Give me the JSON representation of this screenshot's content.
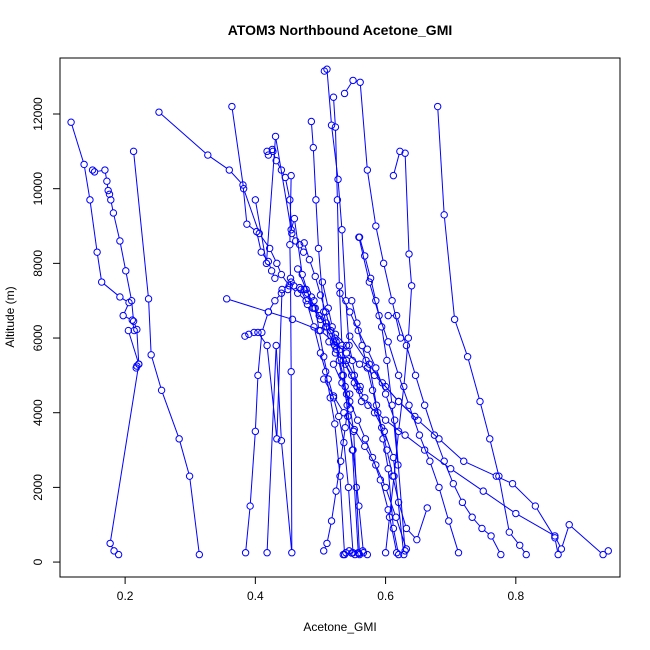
{
  "chart_data": {
    "type": "line",
    "title": "ATOM3 Northbound Acetone_GMI",
    "xlabel": "Acetone_GMI",
    "ylabel": "Altitude (m)",
    "xlim": [
      0.1,
      0.96
    ],
    "ylim": [
      -400,
      13500
    ],
    "xticks": [
      "0.2",
      "0.4",
      "0.6",
      "0.8"
    ],
    "xtick_values": [
      0.2,
      0.4,
      0.6,
      0.8
    ],
    "yticks": [
      "0",
      "2000",
      "4000",
      "6000",
      "8000",
      "10000",
      "12000"
    ],
    "ytick_values": [
      0,
      2000,
      4000,
      6000,
      8000,
      10000,
      12000
    ],
    "grid": false,
    "legend": "none",
    "line_color": "#0000ff",
    "marker": "open-circle",
    "series": [
      {
        "x": [
          0.117,
          0.137,
          0.146,
          0.157,
          0.164,
          0.192,
          0.206,
          0.197,
          0.211,
          0.214,
          0.205,
          0.221,
          0.218,
          0.217
        ],
        "y": [
          11780,
          10650,
          9700,
          8300,
          7500,
          7100,
          6950,
          6600,
          6480,
          6200,
          6200,
          5300,
          5250,
          5200
        ]
      },
      {
        "x": [
          0.15,
          0.153,
          0.169,
          0.172,
          0.174,
          0.176,
          0.178,
          0.182,
          0.192,
          0.201,
          0.21,
          0.213,
          0.218,
          0.221,
          0.177,
          0.183,
          0.19
        ],
        "y": [
          10500,
          10450,
          10500,
          10200,
          9950,
          9850,
          9700,
          9350,
          8600,
          7800,
          7000,
          6450,
          6230,
          5300,
          500,
          300,
          200
        ]
      },
      {
        "x": [
          0.213,
          0.236,
          0.24,
          0.256,
          0.283,
          0.299,
          0.314
        ],
        "y": [
          11000,
          7050,
          5550,
          4600,
          3300,
          2300,
          200
        ]
      },
      {
        "x": [
          0.252,
          0.327,
          0.36,
          0.381,
          0.387,
          0.402,
          0.409,
          0.42,
          0.425,
          0.43
        ],
        "y": [
          12050,
          10900,
          10500,
          10100,
          9050,
          8850,
          8300,
          8050,
          7800,
          7600
        ]
      },
      {
        "x": [
          0.356,
          0.42,
          0.457,
          0.5,
          0.52,
          0.54,
          0.56,
          0.583,
          0.6,
          0.62,
          0.645
        ],
        "y": [
          7050,
          6700,
          6500,
          6200,
          5900,
          5600,
          5300,
          5000,
          4700,
          4300,
          3900
        ]
      },
      {
        "x": [
          0.364,
          0.382,
          0.406,
          0.422,
          0.433,
          0.44,
          0.452,
          0.465,
          0.478,
          0.49,
          0.498,
          0.509,
          0.523,
          0.54
        ],
        "y": [
          12200,
          10000,
          8800,
          8400,
          8000,
          7700,
          7400,
          7200,
          7000,
          6800,
          6600,
          6400,
          6100,
          5800
        ]
      },
      {
        "x": [
          0.4,
          0.417,
          0.431,
          0.455,
          0.46,
          0.472,
          0.488,
          0.5,
          0.51,
          0.522,
          0.531,
          0.54,
          0.552,
          0.561
        ],
        "y": [
          9700,
          8000,
          11400,
          8900,
          9200,
          7700,
          6800,
          6500,
          6300,
          6000,
          5700,
          5400,
          5000,
          4700
        ]
      },
      {
        "x": [
          0.418,
          0.42,
          0.426,
          0.427,
          0.432,
          0.44,
          0.446,
          0.453,
          0.456,
          0.462,
          0.468,
          0.474
        ],
        "y": [
          11000,
          10900,
          11050,
          11000,
          10750,
          10500,
          10300,
          9700,
          8800,
          8600,
          8500,
          8300
        ]
      },
      {
        "x": [
          0.384,
          0.39,
          0.398,
          0.404,
          0.418,
          0.433,
          0.441,
          0.455,
          0.459,
          0.468,
          0.475,
          0.48,
          0.486
        ],
        "y": [
          6050,
          6100,
          6150,
          6150,
          5800,
          3300,
          7300,
          7500,
          7400,
          7350,
          7300,
          7200,
          7100
        ]
      },
      {
        "x": [
          0.455,
          0.453,
          0.454,
          0.455,
          0.456,
          0.44,
          0.432,
          0.418
        ],
        "y": [
          10350,
          8500,
          7600,
          5100,
          250,
          3250,
          5800,
          250
        ]
      },
      {
        "x": [
          0.385,
          0.392,
          0.4,
          0.404,
          0.41,
          0.42,
          0.43,
          0.44,
          0.45
        ],
        "y": [
          250,
          1500,
          3500,
          5000,
          6150,
          6700,
          7000,
          7200,
          7300
        ]
      },
      {
        "x": [
          0.486,
          0.489,
          0.493,
          0.497,
          0.505,
          0.513,
          0.523,
          0.535,
          0.548,
          0.56
        ],
        "y": [
          11800,
          11100,
          9700,
          8400,
          6700,
          5900,
          5600,
          5400,
          5000,
          4600
        ]
      },
      {
        "x": [
          0.506,
          0.51,
          0.517,
          0.527,
          0.533,
          0.539,
          0.544,
          0.549,
          0.556,
          0.563
        ],
        "y": [
          13150,
          13200,
          11700,
          10250,
          8900,
          7000,
          5800,
          5400,
          4700,
          4300
        ]
      },
      {
        "x": [
          0.52,
          0.523,
          0.526,
          0.529,
          0.533,
          0.538,
          0.542,
          0.55,
          0.559,
          0.566
        ],
        "y": [
          12450,
          11650,
          9700,
          7400,
          5800,
          4700,
          3900,
          3000,
          1500,
          250
        ]
      },
      {
        "x": [
          0.537,
          0.55,
          0.561,
          0.572,
          0.585,
          0.597,
          0.61,
          0.623
        ],
        "y": [
          12550,
          12900,
          12850,
          10500,
          9000,
          8000,
          7000,
          6000
        ]
      },
      {
        "x": [
          0.559,
          0.575,
          0.59,
          0.604,
          0.62,
          0.636,
          0.652,
          0.668,
          0.682,
          0.697,
          0.712
        ],
        "y": [
          8700,
          7500,
          6600,
          5900,
          5000,
          4200,
          3400,
          2700,
          2000,
          1100,
          250
        ]
      },
      {
        "x": [
          0.612,
          0.622,
          0.63,
          0.636,
          0.64,
          0.635,
          0.628,
          0.62,
          0.613,
          0.606,
          0.6
        ],
        "y": [
          10350,
          11000,
          10950,
          8250,
          7400,
          6000,
          4700,
          3500,
          2300,
          1200,
          250
        ]
      },
      {
        "x": [
          0.68,
          0.69,
          0.706,
          0.726,
          0.745,
          0.76,
          0.774,
          0.79,
          0.806,
          0.816
        ],
        "y": [
          12200,
          9300,
          6500,
          5500,
          4300,
          3300,
          2300,
          800,
          450,
          200
        ]
      },
      {
        "x": [
          0.604,
          0.617,
          0.632,
          0.646,
          0.66,
          0.675,
          0.69,
          0.704,
          0.718,
          0.733,
          0.748,
          0.762,
          0.777
        ],
        "y": [
          6600,
          6600,
          5800,
          5000,
          4200,
          3400,
          2700,
          2100,
          1600,
          1200,
          900,
          700,
          200
        ]
      },
      {
        "x": [
          0.545,
          0.57,
          0.595,
          0.62,
          0.65,
          0.682,
          0.72,
          0.77,
          0.795,
          0.83,
          0.86,
          0.865
        ],
        "y": [
          6050,
          5400,
          4800,
          4300,
          3800,
          3300,
          2700,
          2300,
          2100,
          1500,
          650,
          200
        ]
      },
      {
        "x": [
          0.573,
          0.6,
          0.63,
          0.66,
          0.7,
          0.75,
          0.8,
          0.86,
          0.87,
          0.882,
          0.934,
          0.942
        ],
        "y": [
          4200,
          3800,
          3400,
          3000,
          2500,
          1900,
          1300,
          700,
          350,
          1000,
          200,
          300
        ]
      },
      {
        "x": [
          0.503,
          0.512,
          0.518,
          0.524,
          0.529,
          0.535,
          0.54,
          0.546,
          0.551,
          0.555,
          0.56
        ],
        "y": [
          7500,
          6800,
          6300,
          5900,
          5400,
          5000,
          4500,
          4100,
          3500,
          2000,
          200
        ]
      },
      {
        "x": [
          0.49,
          0.498,
          0.505,
          0.512,
          0.52,
          0.528,
          0.536,
          0.543,
          0.55
        ],
        "y": [
          7000,
          6200,
          5500,
          4900,
          4400,
          3900,
          3200,
          2000,
          250
        ]
      },
      {
        "x": [
          0.47,
          0.48,
          0.49,
          0.5,
          0.508,
          0.515,
          0.522,
          0.53,
          0.537
        ],
        "y": [
          7300,
          6900,
          6300,
          5600,
          5100,
          4400,
          3700,
          2300,
          200
        ]
      },
      {
        "x": [
          0.465,
          0.478,
          0.492,
          0.508,
          0.522,
          0.538,
          0.552,
          0.568,
          0.583,
          0.598,
          0.612,
          0.628
        ],
        "y": [
          7850,
          7300,
          6800,
          6300,
          5800,
          5300,
          4800,
          4400,
          4000,
          3500,
          2800,
          200
        ]
      },
      {
        "x": [
          0.53,
          0.545,
          0.558,
          0.572,
          0.585,
          0.6,
          0.614,
          0.63
        ],
        "y": [
          7200,
          6700,
          6200,
          5700,
          5200,
          4500,
          3800,
          300
        ]
      },
      {
        "x": [
          0.548,
          0.556,
          0.564,
          0.572,
          0.58,
          0.588,
          0.596,
          0.604,
          0.612,
          0.62
        ],
        "y": [
          7000,
          6400,
          5800,
          5200,
          4600,
          4000,
          3300,
          2500,
          900,
          200
        ]
      },
      {
        "x": [
          0.52,
          0.533,
          0.545,
          0.557,
          0.569,
          0.58,
          0.592,
          0.604,
          0.617
        ],
        "y": [
          5300,
          4800,
          4300,
          3800,
          3300,
          2800,
          2200,
          1400,
          250
        ]
      },
      {
        "x": [
          0.505,
          0.52,
          0.536,
          0.552,
          0.568,
          0.585,
          0.6,
          0.616,
          0.632
        ],
        "y": [
          4900,
          4450,
          4000,
          3550,
          3100,
          2600,
          2000,
          1200,
          350
        ]
      },
      {
        "x": [
          0.575,
          0.586,
          0.594,
          0.602,
          0.611,
          0.62,
          0.632,
          0.648,
          0.664
        ],
        "y": [
          5300,
          4200,
          3600,
          3000,
          2300,
          1600,
          900,
          600,
          1450
        ]
      },
      {
        "x": [
          0.56,
          0.568,
          0.577,
          0.585,
          0.594,
          0.602,
          0.61,
          0.619
        ],
        "y": [
          8700,
          8200,
          7600,
          7000,
          6300,
          5400,
          4200,
          2600
        ]
      },
      {
        "x": [
          0.475,
          0.483,
          0.492,
          0.5,
          0.508,
          0.516,
          0.524,
          0.533,
          0.541,
          0.549,
          0.558
        ],
        "y": [
          8550,
          8100,
          7650,
          7150,
          6700,
          6200,
          5700,
          5000,
          4200,
          3000,
          250
        ]
      },
      {
        "x": [
          0.545,
          0.538,
          0.531,
          0.524,
          0.517,
          0.51,
          0.505
        ],
        "y": [
          4500,
          3600,
          2700,
          1900,
          1100,
          500,
          300
        ]
      },
      {
        "x": [
          0.535,
          0.539,
          0.544,
          0.548,
          0.553,
          0.559,
          0.565,
          0.572
        ],
        "y": [
          200,
          250,
          300,
          240,
          200,
          230,
          300,
          200
        ]
      }
    ]
  }
}
